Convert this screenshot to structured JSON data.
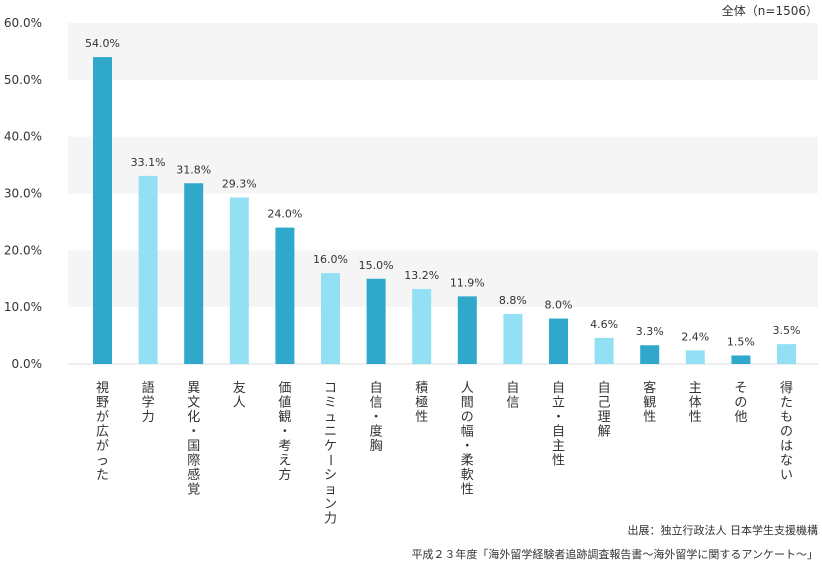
{
  "chart_data": {
    "type": "bar",
    "title": "",
    "xlabel": "",
    "ylabel": "",
    "ylim": [
      0,
      60
    ],
    "yticks": [
      "0.0%",
      "10.0%",
      "20.0%",
      "30.0%",
      "40.0%",
      "50.0%",
      "60.0%"
    ],
    "grid": "alternating-bands",
    "categories": [
      "視野が広がった",
      "語学力",
      "異文化・国際感覚",
      "友人",
      "価値観・考え方",
      "コミュニケーション力",
      "自信・度胸",
      "積極性",
      "人間の幅・柔軟性",
      "自信",
      "自立・自主性",
      "自己理解",
      "客観性",
      "主体性",
      "その他",
      "得たものはない"
    ],
    "values": [
      54.0,
      33.1,
      31.8,
      29.3,
      24.0,
      16.0,
      15.0,
      13.2,
      11.9,
      8.8,
      8.0,
      4.6,
      3.3,
      2.4,
      1.5,
      3.5
    ],
    "value_labels": [
      "54.0%",
      "33.1%",
      "31.8%",
      "29.3%",
      "24.0%",
      "16.0%",
      "15.0%",
      "13.2%",
      "11.9%",
      "8.8%",
      "8.0%",
      "4.6%",
      "3.3%",
      "2.4%",
      "1.5%",
      "3.5%"
    ],
    "colors": [
      "#2fa8cc",
      "#93e0f5"
    ],
    "band_color": "#f5f5f5",
    "total_note": "全体（n=1506）",
    "source_line1": "出展：独立行政法人 日本学生支援機構",
    "source_line2": "平成２３年度「海外留学経験者追跡調査報告書〜海外留学に関するアンケート〜」"
  }
}
